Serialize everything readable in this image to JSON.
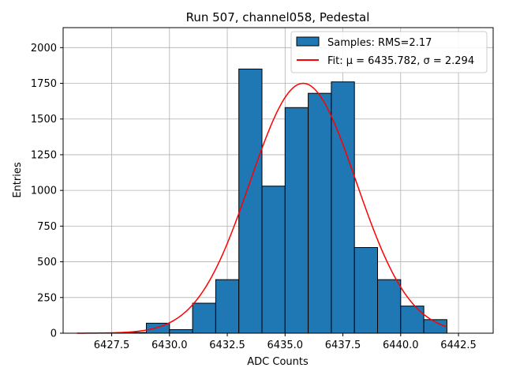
{
  "chart_data": {
    "type": "bar",
    "title": "Run 507, channel058, Pedestal",
    "xlabel": "ADC Counts",
    "ylabel": "Entries",
    "xlim": [
      6425.4,
      6444.0
    ],
    "ylim": [
      0,
      2140
    ],
    "grid": true,
    "legend_position": "top-right",
    "xticks": [
      6427.5,
      6430.0,
      6432.5,
      6435.0,
      6437.5,
      6440.0,
      6442.5
    ],
    "xtick_labels": [
      "6427.5",
      "6430.0",
      "6432.5",
      "6435.0",
      "6437.5",
      "6440.0",
      "6442.5"
    ],
    "yticks": [
      0,
      250,
      500,
      750,
      1000,
      1250,
      1500,
      1750,
      2000
    ],
    "ytick_labels": [
      "0",
      "250",
      "500",
      "750",
      "1000",
      "1250",
      "1500",
      "1750",
      "2000"
    ],
    "histogram": {
      "name": "Samples: RMS=2.17",
      "color": "#1f77b4",
      "edge_color": "#000000",
      "bins": [
        {
          "x0": 6426.0,
          "x1": 6427.0,
          "value": 0
        },
        {
          "x0": 6427.0,
          "x1": 6428.0,
          "value": 0
        },
        {
          "x0": 6428.0,
          "x1": 6429.0,
          "value": 5
        },
        {
          "x0": 6429.0,
          "x1": 6430.0,
          "value": 70
        },
        {
          "x0": 6430.0,
          "x1": 6431.0,
          "value": 25
        },
        {
          "x0": 6431.0,
          "x1": 6432.0,
          "value": 210
        },
        {
          "x0": 6432.0,
          "x1": 6433.0,
          "value": 375
        },
        {
          "x0": 6433.0,
          "x1": 6434.0,
          "value": 1850
        },
        {
          "x0": 6434.0,
          "x1": 6435.0,
          "value": 1030
        },
        {
          "x0": 6435.0,
          "x1": 6436.0,
          "value": 1580
        },
        {
          "x0": 6436.0,
          "x1": 6437.0,
          "value": 1680
        },
        {
          "x0": 6437.0,
          "x1": 6438.0,
          "value": 1760
        },
        {
          "x0": 6438.0,
          "x1": 6439.0,
          "value": 600
        },
        {
          "x0": 6439.0,
          "x1": 6440.0,
          "value": 375
        },
        {
          "x0": 6440.0,
          "x1": 6441.0,
          "value": 190
        },
        {
          "x0": 6441.0,
          "x1": 6442.0,
          "value": 95
        }
      ]
    },
    "fit": {
      "name": "Fit: μ = 6435.782, σ = 2.294",
      "color": "#ff0000",
      "mu": 6435.782,
      "sigma": 2.294,
      "amplitude": 1750,
      "x_range": [
        6426.0,
        6442.0
      ]
    }
  }
}
